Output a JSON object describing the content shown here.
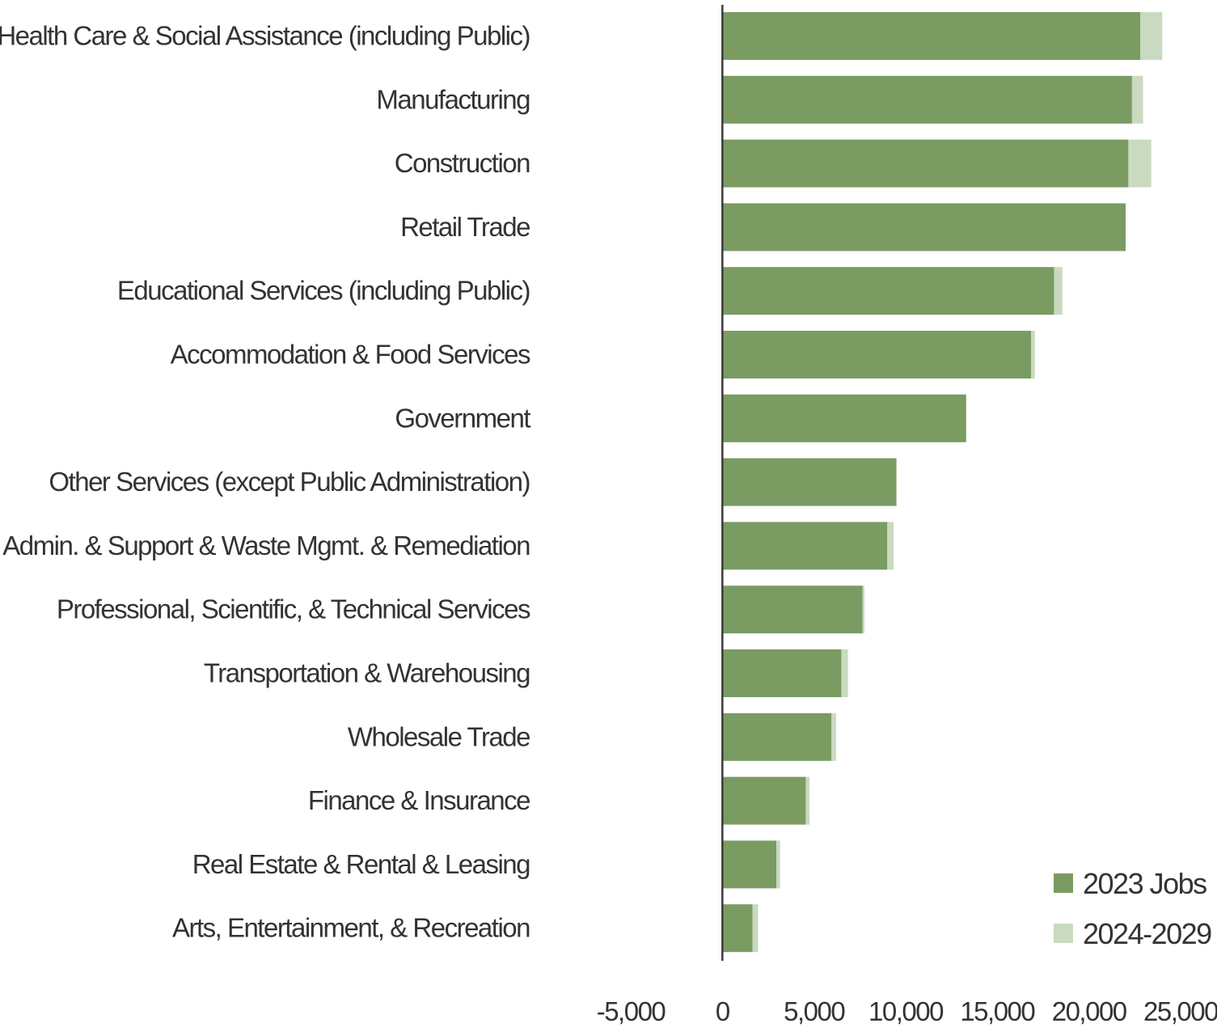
{
  "chart_data": {
    "type": "bar",
    "orientation": "horizontal",
    "stacked": true,
    "title": "",
    "xlabel": "",
    "ylabel": "",
    "xlim": [
      -5000,
      25000
    ],
    "x_ticks": [
      -5000,
      0,
      5000,
      10000,
      15000,
      20000,
      25000
    ],
    "x_tick_labels": [
      "-5,000",
      "0",
      "5,000",
      "10,000",
      "15,000",
      "20,000",
      "25,000"
    ],
    "grid": false,
    "legend_position": "bottom-right",
    "categories": [
      "Health Care & Social Assistance (including Public)",
      "Manufacturing",
      "Construction",
      "Retail Trade",
      "Educational Services (including Public)",
      "Accommodation & Food Services",
      "Government",
      "Other Services (except Public Administration)",
      "Admin. & Support & Waste Mgmt. & Remediation",
      "Professional, Scientific, & Technical Services",
      "Transportation & Warehousing",
      "Wholesale Trade",
      "Finance & Insurance",
      "Real Estate & Rental & Leasing",
      "Arts, Entertainment, & Recreation"
    ],
    "series": [
      {
        "name": "2023 Jobs",
        "color": "#7a9b62",
        "values": [
          22800,
          22350,
          22150,
          22000,
          18100,
          16850,
          13300,
          9500,
          9000,
          7650,
          6500,
          5950,
          4550,
          2950,
          1650
        ]
      },
      {
        "name": "2024-2029",
        "color": "#c9dac0",
        "values": [
          1200,
          600,
          1250,
          0,
          450,
          200,
          0,
          0,
          350,
          100,
          350,
          250,
          200,
          200,
          300
        ]
      }
    ]
  }
}
